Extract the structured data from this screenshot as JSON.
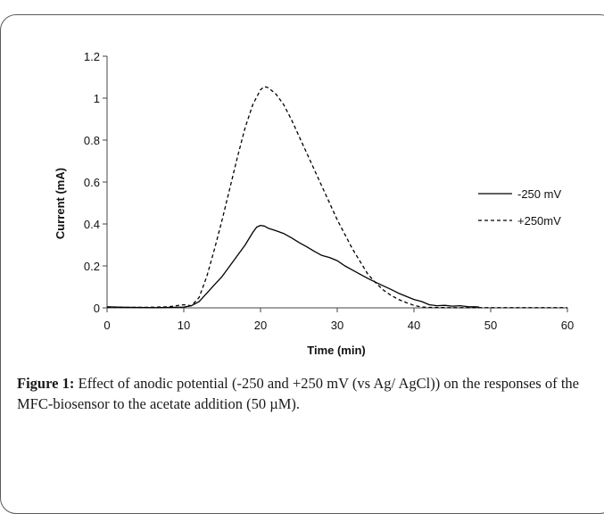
{
  "chart_data": {
    "type": "line",
    "xlabel": "Time (min)",
    "ylabel": "Current (mA)",
    "xlim": [
      0,
      60
    ],
    "ylim": [
      0,
      1.2
    ],
    "xticks": [
      0,
      10,
      20,
      30,
      40,
      50,
      60
    ],
    "yticks": [
      0,
      0.2,
      0.4,
      0.6,
      0.8,
      1,
      1.2
    ],
    "ytick_labels": [
      "0",
      "0.2",
      "0.4",
      "0.6",
      "0.8",
      "1",
      "1.2"
    ],
    "legend_position": "right",
    "grid": false,
    "series": [
      {
        "name": "-250 mV",
        "style": "solid",
        "color": "#000000",
        "points": [
          [
            0,
            0.005
          ],
          [
            2,
            0.003
          ],
          [
            4,
            0.002
          ],
          [
            6,
            0.001
          ],
          [
            8,
            0.002
          ],
          [
            10,
            0.004
          ],
          [
            11,
            0.01
          ],
          [
            12,
            0.03
          ],
          [
            13,
            0.07
          ],
          [
            14,
            0.11
          ],
          [
            15,
            0.15
          ],
          [
            16,
            0.2
          ],
          [
            17,
            0.25
          ],
          [
            18,
            0.3
          ],
          [
            19,
            0.36
          ],
          [
            19.5,
            0.385
          ],
          [
            20,
            0.393
          ],
          [
            20.5,
            0.39
          ],
          [
            21,
            0.38
          ],
          [
            22,
            0.368
          ],
          [
            23,
            0.355
          ],
          [
            24,
            0.335
          ],
          [
            25,
            0.312
          ],
          [
            26,
            0.292
          ],
          [
            27,
            0.27
          ],
          [
            28,
            0.25
          ],
          [
            29,
            0.24
          ],
          [
            30,
            0.225
          ],
          [
            31,
            0.2
          ],
          [
            32,
            0.18
          ],
          [
            33,
            0.16
          ],
          [
            34,
            0.14
          ],
          [
            35,
            0.122
          ],
          [
            36,
            0.105
          ],
          [
            37,
            0.088
          ],
          [
            38,
            0.07
          ],
          [
            39,
            0.055
          ],
          [
            40,
            0.04
          ],
          [
            41,
            0.03
          ],
          [
            42,
            0.015
          ],
          [
            43,
            0.01
          ],
          [
            44,
            0.012
          ],
          [
            45,
            0.008
          ],
          [
            46,
            0.01
          ],
          [
            47,
            0.006
          ],
          [
            48,
            0.005
          ],
          [
            48.5,
            0.004
          ]
        ]
      },
      {
        "name": "+250mV",
        "style": "dashed",
        "color": "#000000",
        "points": [
          [
            0,
            0.003
          ],
          [
            3,
            0.002
          ],
          [
            6,
            0.003
          ],
          [
            8,
            0.005
          ],
          [
            9,
            0.01
          ],
          [
            10,
            0.015
          ],
          [
            11,
            0.01
          ],
          [
            12,
            0.05
          ],
          [
            13,
            0.15
          ],
          [
            14,
            0.28
          ],
          [
            15,
            0.42
          ],
          [
            16,
            0.57
          ],
          [
            17,
            0.72
          ],
          [
            18,
            0.86
          ],
          [
            19,
            0.97
          ],
          [
            20,
            1.04
          ],
          [
            20.5,
            1.055
          ],
          [
            21,
            1.05
          ],
          [
            22,
            1.02
          ],
          [
            23,
            0.97
          ],
          [
            24,
            0.9
          ],
          [
            25,
            0.82
          ],
          [
            26,
            0.74
          ],
          [
            27,
            0.66
          ],
          [
            28,
            0.58
          ],
          [
            29,
            0.5
          ],
          [
            30,
            0.42
          ],
          [
            31,
            0.35
          ],
          [
            32,
            0.28
          ],
          [
            33,
            0.22
          ],
          [
            34,
            0.16
          ],
          [
            35,
            0.12
          ],
          [
            36,
            0.085
          ],
          [
            37,
            0.06
          ],
          [
            38,
            0.04
          ],
          [
            39,
            0.025
          ],
          [
            40,
            0.012
          ],
          [
            41,
            0.004
          ],
          [
            42,
            0.002
          ],
          [
            45,
            0.001
          ],
          [
            50,
            0.001
          ],
          [
            55,
            0.001
          ],
          [
            60,
            0.001
          ]
        ]
      }
    ]
  },
  "caption": {
    "label": "Figure 1:",
    "text": " Effect of anodic potential (-250 and +250 mV (vs Ag/ AgCl)) on the responses of the MFC-biosensor to the acetate addition (50 µM)."
  }
}
